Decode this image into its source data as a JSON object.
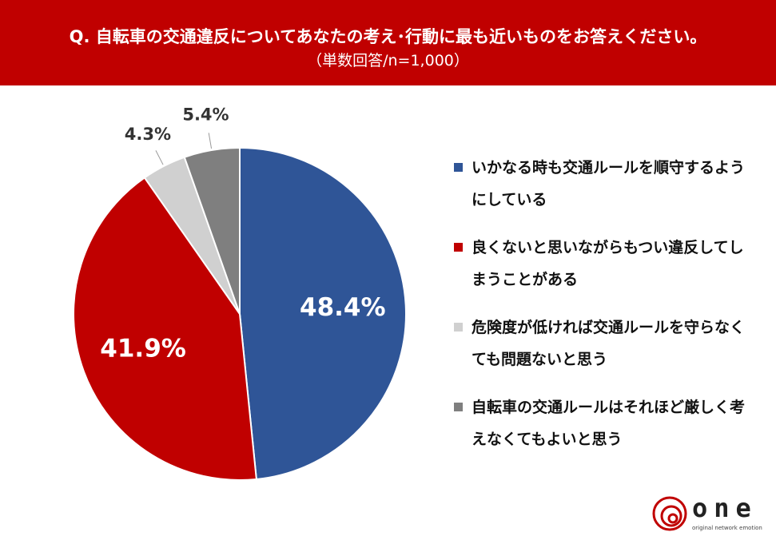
{
  "chart_data": {
    "type": "pie",
    "title": "Q. 自転車の交通違反についてあなたの考え･行動に最も近いものをお答えください。",
    "subtitle": "（単数回答/n=1,000）",
    "categories": [
      "いかなる時も交通ルールを順守するようにしている",
      "良くないと思いながらもつい違反してしまうことがある",
      "危険度が低ければ交通ルールを守らなくても問題ないと思う",
      "自転車の交通ルールはそれほど厳しく考えなくてもよいと思う"
    ],
    "values": [
      48.4,
      41.9,
      4.3,
      5.4
    ],
    "value_labels": [
      "48.4%",
      "41.9%",
      "4.3%",
      "5.4%"
    ],
    "colors": [
      "#2f5597",
      "#c00000",
      "#d0d0d0",
      "#7f7f7f"
    ],
    "legend": "right"
  },
  "logo": {
    "name": "one",
    "tagline": "original network emotion"
  }
}
